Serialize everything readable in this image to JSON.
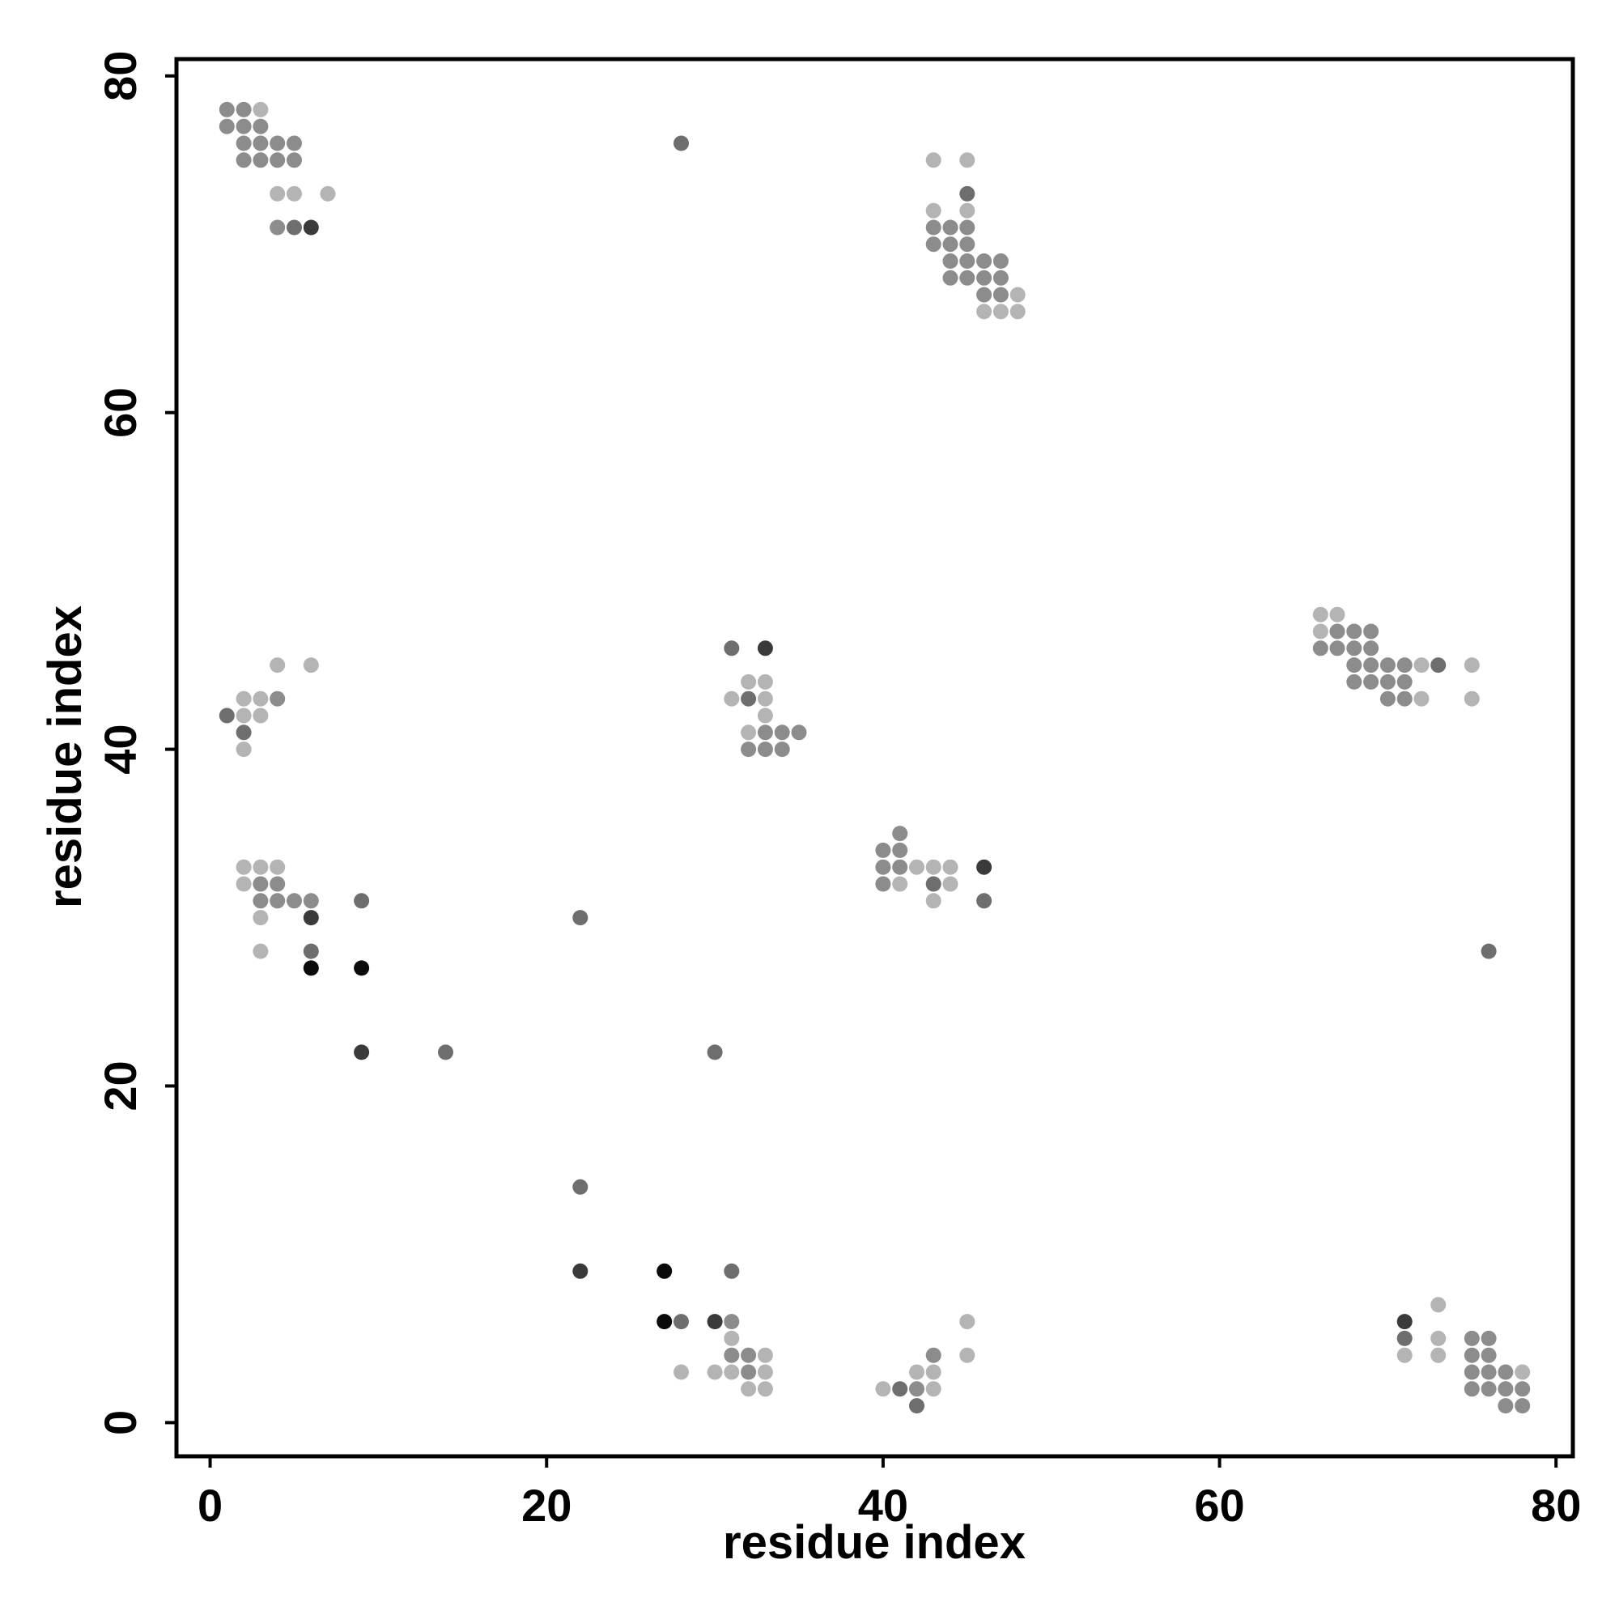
{
  "chart_data": {
    "type": "scatter",
    "title": "",
    "xlabel": "residue index",
    "ylabel": "residue index",
    "xlim": [
      -2,
      81
    ],
    "ylim": [
      -2,
      81
    ],
    "xticks": [
      0,
      20,
      40,
      60,
      80
    ],
    "yticks": [
      0,
      20,
      40,
      60,
      80
    ],
    "grid": false,
    "legend": "none",
    "shade_scale": "darker gray = stronger contact",
    "shades": {
      "light": "#b4b4b4",
      "mid": "#8c8c8c",
      "dark": "#6e6e6e",
      "darker": "#3a3a3a",
      "black": "#0a0a0a"
    },
    "points": [
      {
        "x": 1,
        "y": 78,
        "shade": "mid"
      },
      {
        "x": 2,
        "y": 78,
        "shade": "mid"
      },
      {
        "x": 3,
        "y": 78,
        "shade": "light"
      },
      {
        "x": 1,
        "y": 77,
        "shade": "mid"
      },
      {
        "x": 2,
        "y": 77,
        "shade": "mid"
      },
      {
        "x": 3,
        "y": 77,
        "shade": "mid"
      },
      {
        "x": 2,
        "y": 76,
        "shade": "mid"
      },
      {
        "x": 3,
        "y": 76,
        "shade": "mid"
      },
      {
        "x": 4,
        "y": 76,
        "shade": "mid"
      },
      {
        "x": 5,
        "y": 76,
        "shade": "mid"
      },
      {
        "x": 2,
        "y": 75,
        "shade": "mid"
      },
      {
        "x": 3,
        "y": 75,
        "shade": "mid"
      },
      {
        "x": 4,
        "y": 75,
        "shade": "mid"
      },
      {
        "x": 5,
        "y": 75,
        "shade": "mid"
      },
      {
        "x": 4,
        "y": 73,
        "shade": "light"
      },
      {
        "x": 5,
        "y": 73,
        "shade": "light"
      },
      {
        "x": 7,
        "y": 73,
        "shade": "light"
      },
      {
        "x": 4,
        "y": 71,
        "shade": "mid"
      },
      {
        "x": 5,
        "y": 71,
        "shade": "dark"
      },
      {
        "x": 6,
        "y": 71,
        "shade": "darker"
      },
      {
        "x": 28,
        "y": 76,
        "shade": "dark"
      },
      {
        "x": 43,
        "y": 75,
        "shade": "light"
      },
      {
        "x": 45,
        "y": 75,
        "shade": "light"
      },
      {
        "x": 45,
        "y": 73,
        "shade": "dark"
      },
      {
        "x": 43,
        "y": 72,
        "shade": "light"
      },
      {
        "x": 45,
        "y": 72,
        "shade": "light"
      },
      {
        "x": 43,
        "y": 71,
        "shade": "mid"
      },
      {
        "x": 44,
        "y": 71,
        "shade": "mid"
      },
      {
        "x": 45,
        "y": 71,
        "shade": "mid"
      },
      {
        "x": 43,
        "y": 70,
        "shade": "mid"
      },
      {
        "x": 44,
        "y": 70,
        "shade": "mid"
      },
      {
        "x": 45,
        "y": 70,
        "shade": "mid"
      },
      {
        "x": 44,
        "y": 69,
        "shade": "mid"
      },
      {
        "x": 45,
        "y": 69,
        "shade": "mid"
      },
      {
        "x": 46,
        "y": 69,
        "shade": "mid"
      },
      {
        "x": 47,
        "y": 69,
        "shade": "mid"
      },
      {
        "x": 44,
        "y": 68,
        "shade": "mid"
      },
      {
        "x": 45,
        "y": 68,
        "shade": "mid"
      },
      {
        "x": 46,
        "y": 68,
        "shade": "mid"
      },
      {
        "x": 47,
        "y": 68,
        "shade": "mid"
      },
      {
        "x": 46,
        "y": 67,
        "shade": "mid"
      },
      {
        "x": 47,
        "y": 67,
        "shade": "mid"
      },
      {
        "x": 48,
        "y": 67,
        "shade": "light"
      },
      {
        "x": 46,
        "y": 66,
        "shade": "light"
      },
      {
        "x": 47,
        "y": 66,
        "shade": "light"
      },
      {
        "x": 48,
        "y": 66,
        "shade": "light"
      },
      {
        "x": 66,
        "y": 48,
        "shade": "light"
      },
      {
        "x": 67,
        "y": 48,
        "shade": "light"
      },
      {
        "x": 66,
        "y": 47,
        "shade": "light"
      },
      {
        "x": 67,
        "y": 47,
        "shade": "mid"
      },
      {
        "x": 68,
        "y": 47,
        "shade": "mid"
      },
      {
        "x": 69,
        "y": 47,
        "shade": "mid"
      },
      {
        "x": 66,
        "y": 46,
        "shade": "mid"
      },
      {
        "x": 67,
        "y": 46,
        "shade": "mid"
      },
      {
        "x": 68,
        "y": 46,
        "shade": "mid"
      },
      {
        "x": 69,
        "y": 46,
        "shade": "mid"
      },
      {
        "x": 68,
        "y": 45,
        "shade": "mid"
      },
      {
        "x": 69,
        "y": 45,
        "shade": "mid"
      },
      {
        "x": 70,
        "y": 45,
        "shade": "mid"
      },
      {
        "x": 71,
        "y": 45,
        "shade": "mid"
      },
      {
        "x": 72,
        "y": 45,
        "shade": "light"
      },
      {
        "x": 73,
        "y": 45,
        "shade": "dark"
      },
      {
        "x": 75,
        "y": 45,
        "shade": "light"
      },
      {
        "x": 68,
        "y": 44,
        "shade": "mid"
      },
      {
        "x": 69,
        "y": 44,
        "shade": "mid"
      },
      {
        "x": 70,
        "y": 44,
        "shade": "mid"
      },
      {
        "x": 71,
        "y": 44,
        "shade": "mid"
      },
      {
        "x": 70,
        "y": 43,
        "shade": "mid"
      },
      {
        "x": 71,
        "y": 43,
        "shade": "mid"
      },
      {
        "x": 72,
        "y": 43,
        "shade": "light"
      },
      {
        "x": 75,
        "y": 43,
        "shade": "light"
      },
      {
        "x": 4,
        "y": 45,
        "shade": "light"
      },
      {
        "x": 6,
        "y": 45,
        "shade": "light"
      },
      {
        "x": 2,
        "y": 43,
        "shade": "light"
      },
      {
        "x": 3,
        "y": 43,
        "shade": "light"
      },
      {
        "x": 4,
        "y": 43,
        "shade": "mid"
      },
      {
        "x": 1,
        "y": 42,
        "shade": "dark"
      },
      {
        "x": 2,
        "y": 42,
        "shade": "light"
      },
      {
        "x": 3,
        "y": 42,
        "shade": "light"
      },
      {
        "x": 2,
        "y": 41,
        "shade": "dark"
      },
      {
        "x": 2,
        "y": 40,
        "shade": "light"
      },
      {
        "x": 31,
        "y": 46,
        "shade": "dark"
      },
      {
        "x": 33,
        "y": 46,
        "shade": "darker"
      },
      {
        "x": 32,
        "y": 44,
        "shade": "light"
      },
      {
        "x": 33,
        "y": 44,
        "shade": "light"
      },
      {
        "x": 31,
        "y": 43,
        "shade": "light"
      },
      {
        "x": 32,
        "y": 43,
        "shade": "dark"
      },
      {
        "x": 33,
        "y": 43,
        "shade": "light"
      },
      {
        "x": 33,
        "y": 42,
        "shade": "light"
      },
      {
        "x": 32,
        "y": 41,
        "shade": "light"
      },
      {
        "x": 33,
        "y": 41,
        "shade": "mid"
      },
      {
        "x": 34,
        "y": 41,
        "shade": "mid"
      },
      {
        "x": 35,
        "y": 41,
        "shade": "mid"
      },
      {
        "x": 32,
        "y": 40,
        "shade": "mid"
      },
      {
        "x": 33,
        "y": 40,
        "shade": "mid"
      },
      {
        "x": 34,
        "y": 40,
        "shade": "mid"
      },
      {
        "x": 41,
        "y": 35,
        "shade": "mid"
      },
      {
        "x": 40,
        "y": 34,
        "shade": "mid"
      },
      {
        "x": 41,
        "y": 34,
        "shade": "mid"
      },
      {
        "x": 40,
        "y": 33,
        "shade": "mid"
      },
      {
        "x": 41,
        "y": 33,
        "shade": "mid"
      },
      {
        "x": 42,
        "y": 33,
        "shade": "light"
      },
      {
        "x": 43,
        "y": 33,
        "shade": "light"
      },
      {
        "x": 44,
        "y": 33,
        "shade": "light"
      },
      {
        "x": 46,
        "y": 33,
        "shade": "darker"
      },
      {
        "x": 40,
        "y": 32,
        "shade": "mid"
      },
      {
        "x": 41,
        "y": 32,
        "shade": "light"
      },
      {
        "x": 43,
        "y": 32,
        "shade": "dark"
      },
      {
        "x": 44,
        "y": 32,
        "shade": "light"
      },
      {
        "x": 43,
        "y": 31,
        "shade": "light"
      },
      {
        "x": 46,
        "y": 31,
        "shade": "dark"
      },
      {
        "x": 2,
        "y": 33,
        "shade": "light"
      },
      {
        "x": 3,
        "y": 33,
        "shade": "light"
      },
      {
        "x": 4,
        "y": 33,
        "shade": "light"
      },
      {
        "x": 2,
        "y": 32,
        "shade": "light"
      },
      {
        "x": 3,
        "y": 32,
        "shade": "mid"
      },
      {
        "x": 4,
        "y": 32,
        "shade": "mid"
      },
      {
        "x": 3,
        "y": 31,
        "shade": "mid"
      },
      {
        "x": 4,
        "y": 31,
        "shade": "mid"
      },
      {
        "x": 5,
        "y": 31,
        "shade": "mid"
      },
      {
        "x": 6,
        "y": 31,
        "shade": "mid"
      },
      {
        "x": 9,
        "y": 31,
        "shade": "dark"
      },
      {
        "x": 3,
        "y": 30,
        "shade": "light"
      },
      {
        "x": 6,
        "y": 30,
        "shade": "darker"
      },
      {
        "x": 3,
        "y": 28,
        "shade": "light"
      },
      {
        "x": 6,
        "y": 28,
        "shade": "dark"
      },
      {
        "x": 6,
        "y": 27,
        "shade": "black"
      },
      {
        "x": 9,
        "y": 27,
        "shade": "black"
      },
      {
        "x": 9,
        "y": 22,
        "shade": "darker"
      },
      {
        "x": 14,
        "y": 22,
        "shade": "dark"
      },
      {
        "x": 22,
        "y": 30,
        "shade": "dark"
      },
      {
        "x": 30,
        "y": 22,
        "shade": "dark"
      },
      {
        "x": 76,
        "y": 28,
        "shade": "dark"
      },
      {
        "x": 22,
        "y": 14,
        "shade": "dark"
      },
      {
        "x": 22,
        "y": 9,
        "shade": "darker"
      },
      {
        "x": 27,
        "y": 9,
        "shade": "black"
      },
      {
        "x": 31,
        "y": 9,
        "shade": "dark"
      },
      {
        "x": 27,
        "y": 6,
        "shade": "black"
      },
      {
        "x": 28,
        "y": 6,
        "shade": "dark"
      },
      {
        "x": 30,
        "y": 6,
        "shade": "darker"
      },
      {
        "x": 31,
        "y": 6,
        "shade": "mid"
      },
      {
        "x": 31,
        "y": 5,
        "shade": "light"
      },
      {
        "x": 31,
        "y": 4,
        "shade": "mid"
      },
      {
        "x": 32,
        "y": 4,
        "shade": "mid"
      },
      {
        "x": 33,
        "y": 4,
        "shade": "light"
      },
      {
        "x": 28,
        "y": 3,
        "shade": "light"
      },
      {
        "x": 30,
        "y": 3,
        "shade": "light"
      },
      {
        "x": 31,
        "y": 3,
        "shade": "light"
      },
      {
        "x": 32,
        "y": 3,
        "shade": "mid"
      },
      {
        "x": 33,
        "y": 3,
        "shade": "light"
      },
      {
        "x": 32,
        "y": 2,
        "shade": "light"
      },
      {
        "x": 33,
        "y": 2,
        "shade": "light"
      },
      {
        "x": 45,
        "y": 6,
        "shade": "light"
      },
      {
        "x": 43,
        "y": 4,
        "shade": "mid"
      },
      {
        "x": 45,
        "y": 4,
        "shade": "light"
      },
      {
        "x": 42,
        "y": 3,
        "shade": "light"
      },
      {
        "x": 43,
        "y": 3,
        "shade": "light"
      },
      {
        "x": 40,
        "y": 2,
        "shade": "light"
      },
      {
        "x": 41,
        "y": 2,
        "shade": "dark"
      },
      {
        "x": 42,
        "y": 2,
        "shade": "mid"
      },
      {
        "x": 43,
        "y": 2,
        "shade": "light"
      },
      {
        "x": 42,
        "y": 1,
        "shade": "dark"
      },
      {
        "x": 73,
        "y": 7,
        "shade": "light"
      },
      {
        "x": 71,
        "y": 6,
        "shade": "darker"
      },
      {
        "x": 71,
        "y": 5,
        "shade": "dark"
      },
      {
        "x": 73,
        "y": 5,
        "shade": "light"
      },
      {
        "x": 75,
        "y": 5,
        "shade": "mid"
      },
      {
        "x": 76,
        "y": 5,
        "shade": "mid"
      },
      {
        "x": 71,
        "y": 4,
        "shade": "light"
      },
      {
        "x": 73,
        "y": 4,
        "shade": "light"
      },
      {
        "x": 75,
        "y": 4,
        "shade": "mid"
      },
      {
        "x": 76,
        "y": 4,
        "shade": "mid"
      },
      {
        "x": 75,
        "y": 3,
        "shade": "mid"
      },
      {
        "x": 76,
        "y": 3,
        "shade": "mid"
      },
      {
        "x": 77,
        "y": 3,
        "shade": "mid"
      },
      {
        "x": 78,
        "y": 3,
        "shade": "light"
      },
      {
        "x": 75,
        "y": 2,
        "shade": "mid"
      },
      {
        "x": 76,
        "y": 2,
        "shade": "mid"
      },
      {
        "x": 77,
        "y": 2,
        "shade": "mid"
      },
      {
        "x": 78,
        "y": 2,
        "shade": "mid"
      },
      {
        "x": 77,
        "y": 1,
        "shade": "mid"
      },
      {
        "x": 78,
        "y": 1,
        "shade": "mid"
      }
    ]
  }
}
